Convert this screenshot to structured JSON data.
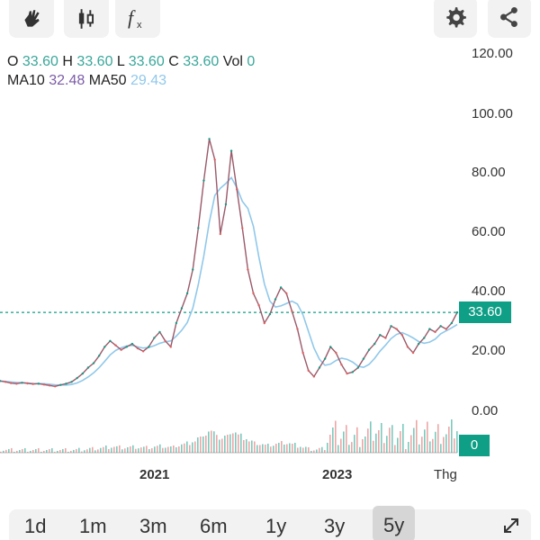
{
  "toolbar": {
    "draw_icon": "hand-draw-icon",
    "candle_icon": "candlestick-icon",
    "fx_icon": "function-fx-icon",
    "settings_icon": "gear-icon",
    "share_icon": "share-icon"
  },
  "info": {
    "o_label": "O",
    "o_value": "33.60",
    "h_label": "H",
    "h_value": "33.60",
    "l_label": "L",
    "l_value": "33.60",
    "c_label": "C",
    "c_value": "33.60",
    "vol_label": "Vol",
    "vol_value": "0",
    "ma10_label": "MA10",
    "ma10_value": "32.48",
    "ma50_label": "MA50",
    "ma50_value": "29.43"
  },
  "price_tag": "33.60",
  "volume_tag": "0",
  "ranges": [
    "1d",
    "1m",
    "3m",
    "6m",
    "1y",
    "3y",
    "5y"
  ],
  "active_range": "5y",
  "colors": {
    "up": "#0f9e86",
    "down": "#e05d5d",
    "ma10": "#7b5ca6",
    "ma50": "#90c8ea",
    "teal_text": "#3aa79a"
  },
  "chart_data": {
    "type": "line",
    "y_ticks": [
      "120.00",
      "100.00",
      "80.00",
      "60.00",
      "40.00",
      "20.00",
      "0.00"
    ],
    "x_ticks": [
      "2021",
      "2023",
      "Thg"
    ],
    "ylim": [
      0,
      120
    ],
    "current_price": 33.6,
    "series": [
      {
        "values": [
          10.5,
          10.2,
          9.8,
          9.6,
          9.9,
          9.7,
          9.5,
          9.6,
          9.3,
          9,
          8.7,
          9.2,
          9.6,
          10.2,
          11.5,
          13,
          15,
          16.5,
          19,
          22,
          24,
          22.5,
          21,
          22,
          23,
          21.5,
          20.5,
          22,
          25,
          27,
          24,
          22,
          30,
          35,
          40,
          48,
          62,
          78,
          92,
          85,
          60,
          70,
          88,
          75,
          62,
          48,
          40,
          36,
          30,
          33,
          38,
          42,
          40,
          34,
          28,
          20,
          14,
          12,
          15,
          18,
          22,
          20,
          16,
          13,
          13.5,
          15,
          18,
          21,
          23,
          26,
          25,
          29,
          28,
          26,
          22,
          20,
          23,
          25,
          28,
          27,
          29,
          28,
          30,
          33.6
        ],
        "color": "price"
      }
    ]
  }
}
